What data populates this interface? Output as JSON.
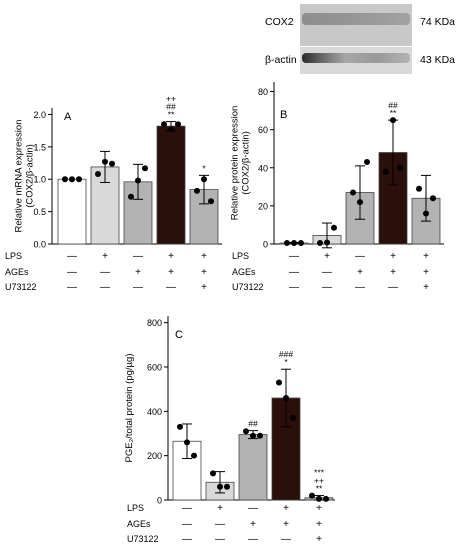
{
  "chart_data": [
    {
      "panel": "A",
      "type": "bar",
      "ylabel": "Relative mRNA expression (COX2/β-actin)",
      "ylabel_lines": [
        "Relative mRNA expression",
        "(COX2/β-actin)"
      ],
      "ylim": [
        0,
        2.1
      ],
      "yticks": [
        "0.0",
        "0.5",
        "1.0",
        "1.5",
        "2.0"
      ],
      "ytick_values": [
        0,
        0.5,
        1.0,
        1.5,
        2.0
      ],
      "values": [
        1.0,
        1.19,
        0.96,
        1.82,
        0.84
      ],
      "errors": [
        0.0,
        0.24,
        0.27,
        0.07,
        0.22
      ],
      "points": [
        [
          1.0,
          1.0,
          1.0
        ],
        [
          1.08,
          1.27,
          1.24
        ],
        [
          0.73,
          0.98,
          1.17
        ],
        [
          1.85,
          1.77,
          1.85
        ],
        [
          0.82,
          1.0,
          0.66
        ]
      ],
      "annotations": [
        "",
        "",
        "",
        "++\n##\n**",
        "*"
      ],
      "bar_colors": [
        "#ffffff",
        "#d9d9d9",
        "#b3b3b3",
        "#2a0f0a",
        "#b3b3b3"
      ]
    },
    {
      "panel": "B",
      "type": "bar",
      "ylabel": "Relative protein expression (COX2/β-actin)",
      "ylabel_lines": [
        "Relative protein expression",
        "(COX2/β-actin)"
      ],
      "ylim": [
        0,
        85
      ],
      "yticks": [
        "0",
        "20",
        "40",
        "60",
        "80"
      ],
      "ytick_values": [
        0,
        20,
        40,
        60,
        80
      ],
      "values": [
        0.5,
        4.5,
        27,
        48,
        24
      ],
      "errors": [
        0.3,
        6.5,
        14,
        17,
        12
      ],
      "points": [
        [
          0.5,
          0.5,
          0.5
        ],
        [
          0.5,
          0.8,
          8.5
        ],
        [
          27.0,
          22.0,
          43.0
        ],
        [
          38.0,
          65.0,
          40.0
        ],
        [
          29.0,
          16.0,
          24.0
        ]
      ],
      "annotations": [
        "",
        "",
        "",
        "##\n**",
        ""
      ],
      "bar_colors": [
        "#ffffff",
        "#d9d9d9",
        "#b3b3b3",
        "#2a0f0a",
        "#b3b3b3"
      ]
    },
    {
      "panel": "C",
      "type": "bar",
      "ylabel": "PGE₂/total protein (pg/µg)",
      "ylim": [
        0,
        830
      ],
      "yticks": [
        "0",
        "200",
        "400",
        "600",
        "800"
      ],
      "ytick_values": [
        0,
        200,
        400,
        600,
        800
      ],
      "values": [
        265,
        80,
        295,
        460,
        10
      ],
      "errors": [
        78,
        48,
        18,
        130,
        10
      ],
      "points": [
        [
          330.0,
          260.0,
          200.0
        ],
        [
          120.0,
          60.0,
          60.0
        ],
        [
          310.0,
          290.0,
          290.0
        ],
        [
          530.0,
          460.0,
          370.0
        ],
        [
          20.0,
          5.0,
          5.0
        ]
      ],
      "annotations": [
        "",
        "",
        "##",
        "###\n*",
        "***\n++\n**"
      ],
      "bar_colors": [
        "#ffffff",
        "#d9d9d9",
        "#b3b3b3",
        "#2a0f0a",
        "#b3b3b3"
      ]
    }
  ],
  "treatment_table": {
    "rows": [
      {
        "label": "LPS",
        "signs": [
          "—",
          "+",
          "—",
          "+",
          "+"
        ]
      },
      {
        "label": "AGEs",
        "signs": [
          "—",
          "—",
          "+",
          "+",
          "+"
        ]
      },
      {
        "label": "U73122",
        "signs": [
          "—",
          "—",
          "—",
          "—",
          "+"
        ]
      }
    ]
  },
  "blot": {
    "bands": [
      {
        "name": "COX2",
        "size": "74 KDa"
      },
      {
        "name": "β-actin",
        "size": "43 KDa"
      }
    ]
  }
}
